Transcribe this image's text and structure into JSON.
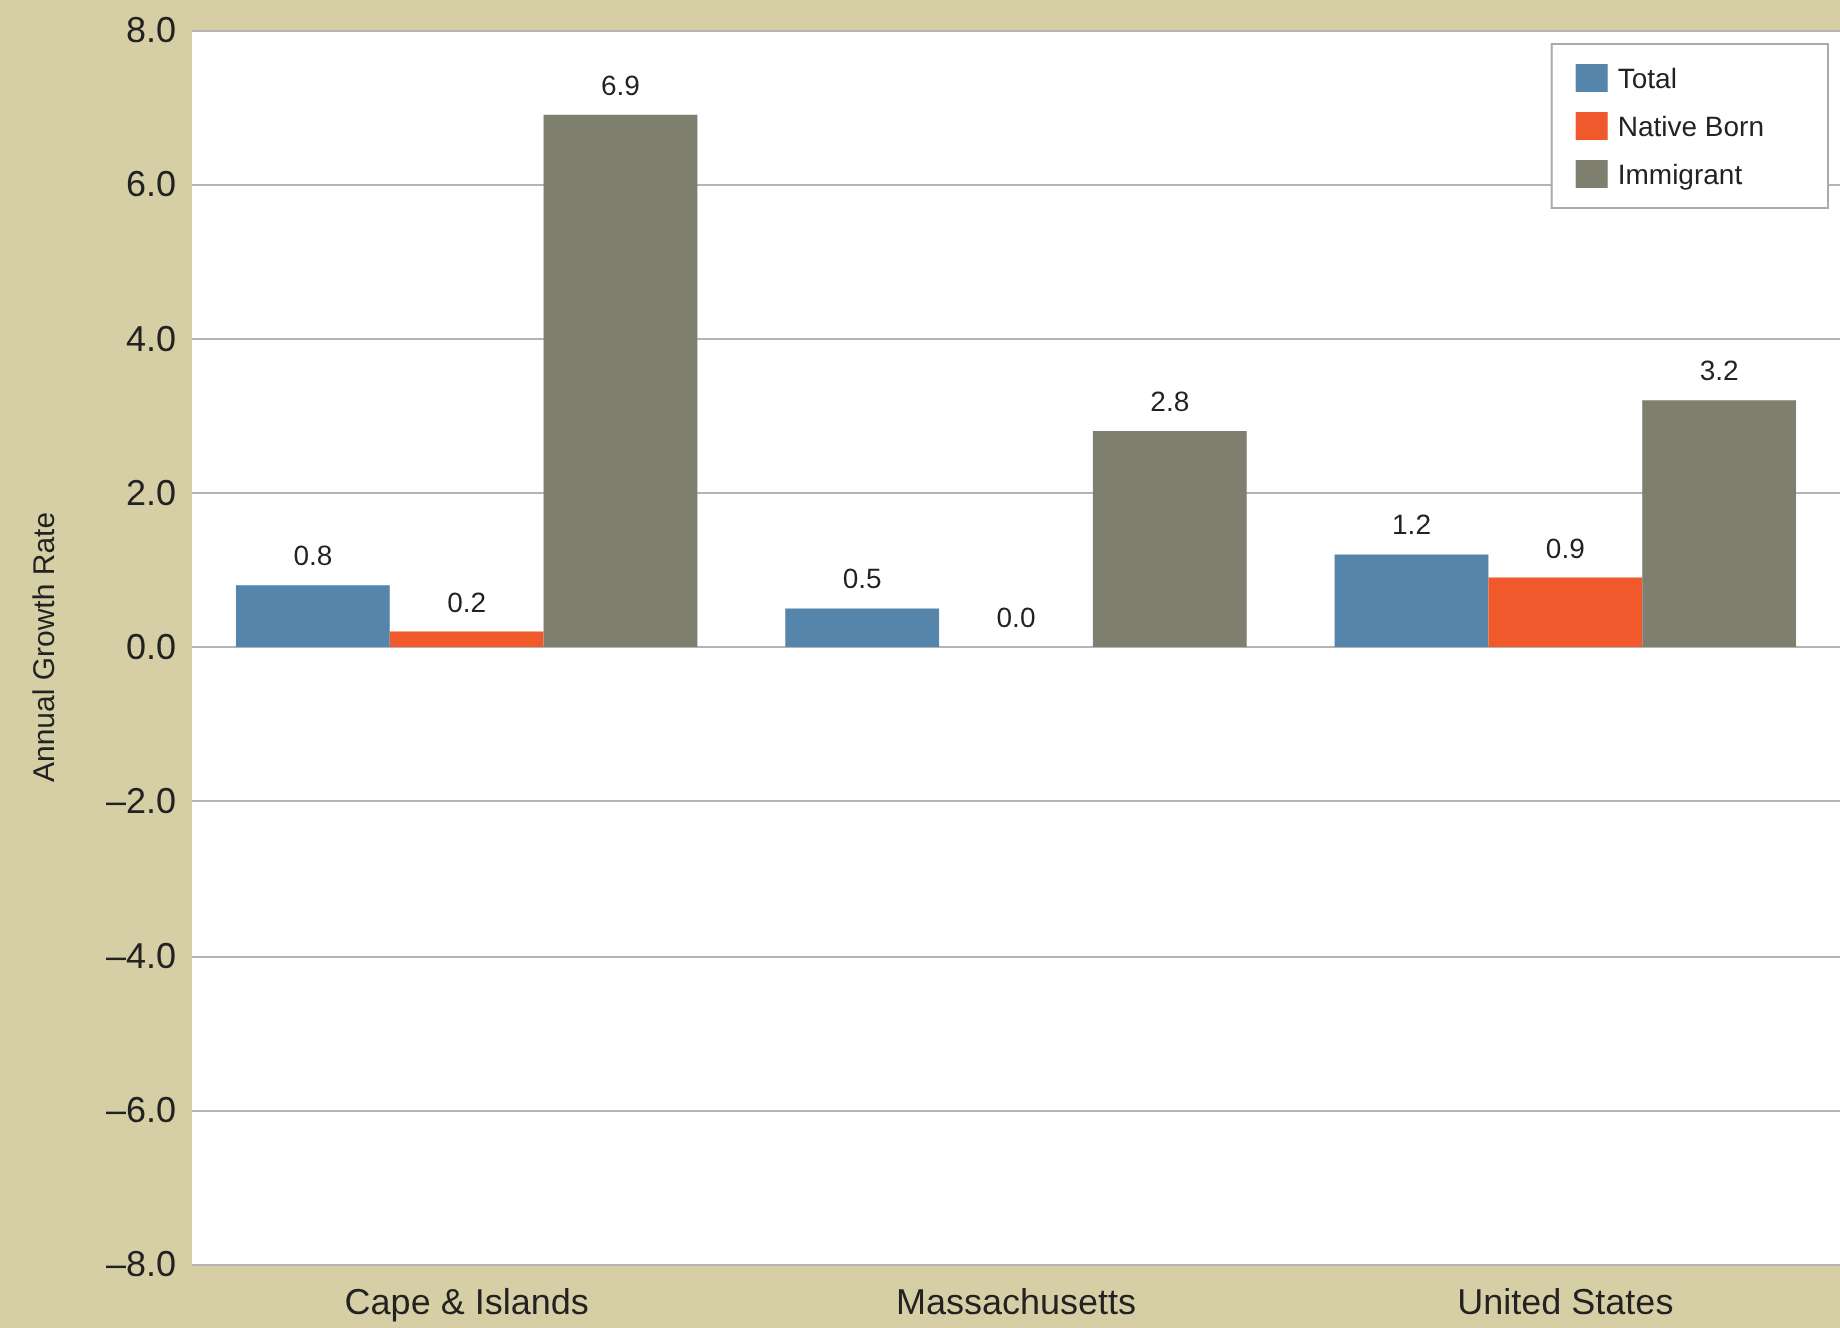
{
  "chart_data": {
    "type": "bar",
    "ylabel": "Annual Growth Rate",
    "categories": [
      "Cape & Islands",
      "Massachusetts",
      "United States"
    ],
    "series": [
      {
        "name": "Total",
        "color": "#5585aa",
        "values": [
          0.8,
          0.5,
          1.2
        ],
        "value_labels": [
          "0.8",
          "0.5",
          "1.2"
        ]
      },
      {
        "name": "Native Born",
        "color": "#f0592b",
        "values": [
          0.2,
          0.0,
          0.9
        ],
        "value_labels": [
          "0.2",
          "0.0",
          "0.9"
        ]
      },
      {
        "name": "Immigrant",
        "color": "#7f7f70",
        "values": [
          6.9,
          2.8,
          3.2
        ],
        "value_labels": [
          "6.9",
          "2.8",
          "3.2"
        ]
      }
    ],
    "ylim": [
      -8,
      8
    ],
    "yticks": [
      {
        "value": -8,
        "label": "–8.0"
      },
      {
        "value": -6,
        "label": "–6.0"
      },
      {
        "value": -4,
        "label": "–4.0"
      },
      {
        "value": -2,
        "label": "–2.0"
      },
      {
        "value": 0,
        "label": "0.0"
      },
      {
        "value": 2,
        "label": "2.0"
      },
      {
        "value": 4,
        "label": "4.0"
      },
      {
        "value": 6,
        "label": "6.0"
      },
      {
        "value": 8,
        "label": "8.0"
      }
    ],
    "grid": true,
    "legend": "top right"
  }
}
